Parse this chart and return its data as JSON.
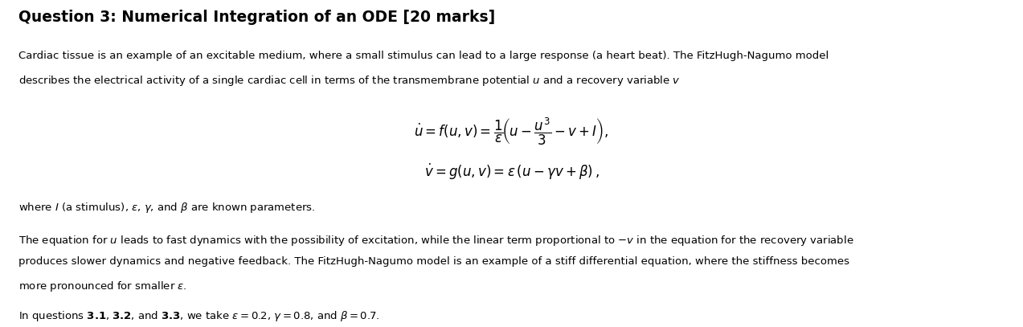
{
  "title": "Question 3: Numerical Integration of an ODE [20 marks]",
  "background_color": "#ffffff",
  "text_color": "#000000",
  "title_fontsize": 13.5,
  "body_fontsize": 9.5,
  "eq_fontsize": 12,
  "para1_line1": "Cardiac tissue is an example of an excitable medium, where a small stimulus can lead to a large response (a heart beat). The FitzHugh-Nagumo model",
  "para1_line2": "describes the electrical activity of a single cardiac cell in terms of the transmembrane potential $u$ and a recovery variable $v$",
  "eq1": "$\\dot{u} = f(u, v) = \\dfrac{1}{\\varepsilon}\\!\\left(u - \\dfrac{u^3}{3} - v + I\\right),$",
  "eq2": "$\\dot{v} = g(u, v) = \\varepsilon\\,(u - \\gamma v + \\beta)\\,,$",
  "para2": "where $I$ (a stimulus), $\\varepsilon$, $\\gamma$, and $\\beta$ are known parameters.",
  "para3_line1": "The equation for $u$ leads to fast dynamics with the possibility of excitation, while the linear term proportional to $-v$ in the equation for the recovery variable",
  "para3_line2": "produces slower dynamics and negative feedback. The FitzHugh-Nagumo model is an example of a stiff differential equation, where the stiffness becomes",
  "para3_line3": "more pronounced for smaller $\\varepsilon$.",
  "para4": "In questions $\\mathbf{3.1}$, $\\mathbf{3.2}$, and $\\mathbf{3.3}$, we take $\\varepsilon = 0.2$, $\\gamma = 0.8$, and $\\beta = 0.7$."
}
